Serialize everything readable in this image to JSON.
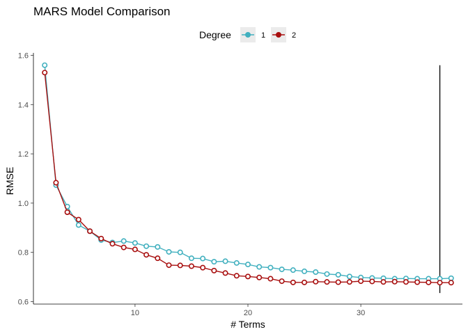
{
  "chart_data": {
    "type": "line",
    "title": "MARS Model Comparison",
    "xlabel": "# Terms",
    "ylabel": "RMSE",
    "xlim": [
      1,
      39
    ],
    "ylim": [
      0.59,
      1.61
    ],
    "xticks": [
      10,
      20,
      30
    ],
    "yticks": [
      0.6,
      0.8,
      1.0,
      1.2,
      1.4,
      1.6
    ],
    "ytick_labels": [
      "0.6",
      "0.8",
      "1.0",
      "1.2",
      "1.4",
      "1.6"
    ],
    "grid": false,
    "legend": {
      "title": "Degree",
      "position": "top"
    },
    "vline": {
      "x": 37,
      "y_from": 0.635,
      "y_to": 1.56
    },
    "series": [
      {
        "name": "1",
        "color": "#41b0bf",
        "x": [
          2,
          3,
          4,
          5,
          6,
          7,
          8,
          9,
          10,
          11,
          12,
          13,
          14,
          15,
          16,
          17,
          18,
          19,
          20,
          21,
          22,
          23,
          24,
          25,
          26,
          27,
          28,
          29,
          30,
          31,
          32,
          33,
          34,
          35,
          36,
          37,
          38
        ],
        "values": [
          1.56,
          1.073,
          0.986,
          0.911,
          0.886,
          0.85,
          0.84,
          0.846,
          0.838,
          0.825,
          0.822,
          0.802,
          0.8,
          0.776,
          0.775,
          0.762,
          0.764,
          0.757,
          0.751,
          0.741,
          0.738,
          0.731,
          0.728,
          0.723,
          0.72,
          0.712,
          0.709,
          0.702,
          0.698,
          0.696,
          0.695,
          0.693,
          0.694,
          0.693,
          0.693,
          0.693,
          0.695
        ]
      },
      {
        "name": "2",
        "color": "#a80e0e",
        "x": [
          2,
          3,
          4,
          5,
          6,
          7,
          8,
          9,
          10,
          11,
          12,
          13,
          14,
          15,
          16,
          17,
          18,
          19,
          20,
          21,
          22,
          23,
          24,
          25,
          26,
          27,
          28,
          29,
          30,
          31,
          32,
          33,
          34,
          35,
          36,
          37,
          38
        ],
        "values": [
          1.53,
          1.083,
          0.963,
          0.933,
          0.886,
          0.856,
          0.835,
          0.82,
          0.812,
          0.79,
          0.776,
          0.748,
          0.747,
          0.744,
          0.738,
          0.726,
          0.716,
          0.705,
          0.702,
          0.698,
          0.693,
          0.683,
          0.678,
          0.678,
          0.681,
          0.68,
          0.679,
          0.68,
          0.683,
          0.682,
          0.68,
          0.681,
          0.68,
          0.679,
          0.678,
          0.677,
          0.677
        ]
      }
    ]
  }
}
